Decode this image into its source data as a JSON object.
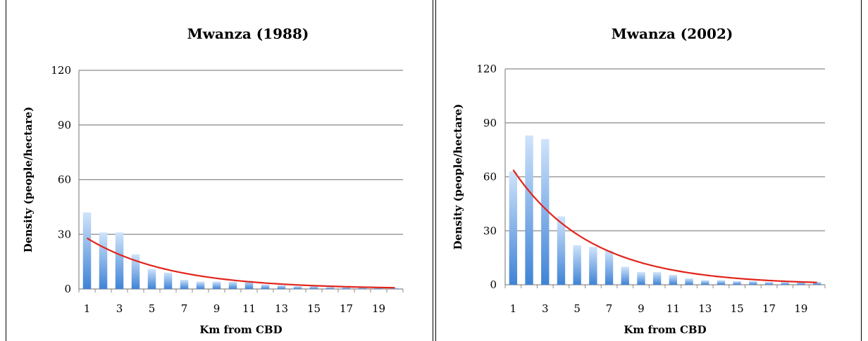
{
  "chart_data": [
    {
      "type": "bar",
      "title": "Mwanza (1988)",
      "xlabel": "Km from CBD",
      "ylabel": "Density (people/hectare)",
      "ylim": [
        0,
        120
      ],
      "yticks": [
        "0",
        "30",
        "60",
        "90",
        "120"
      ],
      "xticks": [
        "1",
        "3",
        "5",
        "7",
        "9",
        "11",
        "13",
        "15",
        "17",
        "19"
      ],
      "grid": true,
      "legend": "none",
      "colors": {
        "bar_light": "#cfe3fb",
        "bar_dark": "#3f83d6",
        "trend": "#e1251b"
      },
      "x": [
        1,
        2,
        3,
        4,
        5,
        6,
        7,
        8,
        9,
        10,
        11,
        12,
        13,
        14,
        15,
        16,
        17,
        18,
        19,
        20
      ],
      "values": [
        42,
        31,
        31,
        19,
        11,
        9,
        5,
        4,
        4,
        4,
        4.5,
        2.5,
        2,
        1.5,
        1.5,
        1,
        1,
        0.8,
        0.8,
        0.5
      ],
      "trend": {
        "type": "exponential",
        "a": 33.9,
        "b": 0.195
      }
    },
    {
      "type": "bar",
      "title": "Mwanza (2002)",
      "xlabel": "Km from CBD",
      "ylabel": "Density (people/hectare)",
      "ylim": [
        0,
        120
      ],
      "yticks": [
        "0",
        "30",
        "60",
        "90",
        "120"
      ],
      "xticks": [
        "1",
        "3",
        "5",
        "7",
        "9",
        "11",
        "13",
        "15",
        "17",
        "19"
      ],
      "grid": true,
      "legend": "none",
      "colors": {
        "bar_light": "#cfe3fb",
        "bar_dark": "#3f83d6",
        "trend": "#e1251b"
      },
      "x": [
        1,
        2,
        3,
        4,
        5,
        6,
        7,
        8,
        9,
        10,
        11,
        12,
        13,
        14,
        15,
        16,
        17,
        18,
        19,
        20
      ],
      "values": [
        63,
        83,
        81,
        38,
        22,
        21,
        19,
        10,
        7,
        7,
        5.5,
        3.5,
        2.5,
        2.5,
        2,
        2,
        1.5,
        1.5,
        1.5,
        1.5
      ],
      "trend": {
        "type": "exponential",
        "a": 78.5,
        "b": 0.206
      }
    }
  ]
}
